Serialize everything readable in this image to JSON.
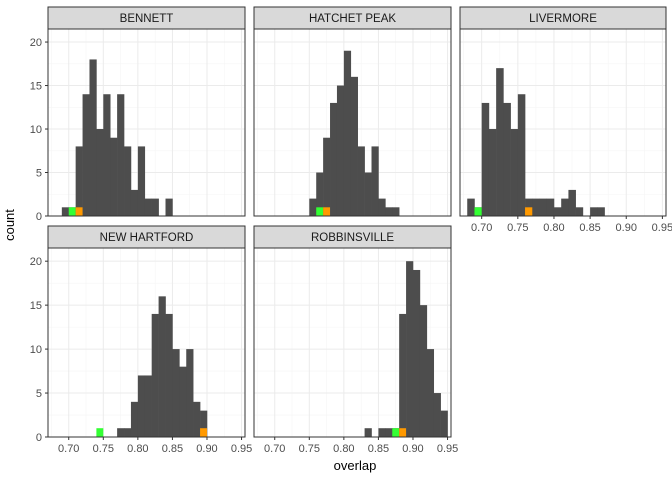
{
  "chart_data": {
    "type": "histogram",
    "xlabel": "overlap",
    "ylabel": "count",
    "xlim": [
      0.67,
      0.955
    ],
    "ylim": [
      0,
      21.5
    ],
    "xticks": [
      0.7,
      0.75,
      0.8,
      0.85,
      0.9,
      0.95
    ],
    "xtick_labels": [
      "0.70",
      "0.75",
      "0.80",
      "0.85",
      "0.90",
      "0.95"
    ],
    "yticks": [
      0,
      5,
      10,
      15,
      20
    ],
    "ytick_labels": [
      "0",
      "5",
      "10",
      "15",
      "20"
    ],
    "bin_width": 0.01,
    "grid": true,
    "colors": {
      "bar": "#4d4d4d",
      "highlight_green": "#33ff33",
      "highlight_orange": "#ff9900",
      "strip_bg": "#d9d9d9",
      "grid_major": "#ebebeb",
      "grid_minor": "#f5f5f5"
    },
    "panels": [
      {
        "name": "BENNETT",
        "bins": [
          {
            "x": 0.695,
            "count": 1
          },
          {
            "x": 0.705,
            "count": 1
          },
          {
            "x": 0.715,
            "count": 8
          },
          {
            "x": 0.725,
            "count": 14
          },
          {
            "x": 0.735,
            "count": 18
          },
          {
            "x": 0.745,
            "count": 10
          },
          {
            "x": 0.755,
            "count": 14
          },
          {
            "x": 0.765,
            "count": 9
          },
          {
            "x": 0.775,
            "count": 14
          },
          {
            "x": 0.785,
            "count": 8
          },
          {
            "x": 0.795,
            "count": 3
          },
          {
            "x": 0.805,
            "count": 8
          },
          {
            "x": 0.815,
            "count": 2
          },
          {
            "x": 0.825,
            "count": 2
          },
          {
            "x": 0.845,
            "count": 2
          }
        ],
        "highlights": [
          {
            "x": 0.705,
            "color": "green"
          },
          {
            "x": 0.715,
            "color": "orange"
          }
        ]
      },
      {
        "name": "HATCHET PEAK",
        "bins": [
          {
            "x": 0.755,
            "count": 2
          },
          {
            "x": 0.765,
            "count": 5
          },
          {
            "x": 0.775,
            "count": 9
          },
          {
            "x": 0.785,
            "count": 13
          },
          {
            "x": 0.795,
            "count": 15
          },
          {
            "x": 0.805,
            "count": 19
          },
          {
            "x": 0.815,
            "count": 16
          },
          {
            "x": 0.825,
            "count": 8
          },
          {
            "x": 0.835,
            "count": 5
          },
          {
            "x": 0.845,
            "count": 8
          },
          {
            "x": 0.855,
            "count": 2
          },
          {
            "x": 0.865,
            "count": 1
          },
          {
            "x": 0.875,
            "count": 1
          }
        ],
        "highlights": [
          {
            "x": 0.765,
            "color": "green"
          },
          {
            "x": 0.775,
            "color": "orange"
          }
        ]
      },
      {
        "name": "LIVERMORE",
        "bins": [
          {
            "x": 0.685,
            "count": 2
          },
          {
            "x": 0.695,
            "count": 1
          },
          {
            "x": 0.705,
            "count": 13
          },
          {
            "x": 0.715,
            "count": 10
          },
          {
            "x": 0.725,
            "count": 17
          },
          {
            "x": 0.735,
            "count": 13
          },
          {
            "x": 0.745,
            "count": 10
          },
          {
            "x": 0.755,
            "count": 14
          },
          {
            "x": 0.765,
            "count": 2
          },
          {
            "x": 0.775,
            "count": 2
          },
          {
            "x": 0.785,
            "count": 2
          },
          {
            "x": 0.795,
            "count": 2
          },
          {
            "x": 0.805,
            "count": 1
          },
          {
            "x": 0.815,
            "count": 2
          },
          {
            "x": 0.825,
            "count": 3
          },
          {
            "x": 0.835,
            "count": 1
          },
          {
            "x": 0.855,
            "count": 1
          },
          {
            "x": 0.865,
            "count": 1
          }
        ],
        "highlights": [
          {
            "x": 0.695,
            "color": "green"
          },
          {
            "x": 0.765,
            "color": "orange"
          }
        ]
      },
      {
        "name": "NEW HARTFORD",
        "bins": [
          {
            "x": 0.775,
            "count": 1
          },
          {
            "x": 0.785,
            "count": 1
          },
          {
            "x": 0.795,
            "count": 4
          },
          {
            "x": 0.805,
            "count": 7
          },
          {
            "x": 0.815,
            "count": 7
          },
          {
            "x": 0.825,
            "count": 14
          },
          {
            "x": 0.835,
            "count": 16
          },
          {
            "x": 0.845,
            "count": 14
          },
          {
            "x": 0.855,
            "count": 10
          },
          {
            "x": 0.865,
            "count": 8
          },
          {
            "x": 0.875,
            "count": 10
          },
          {
            "x": 0.885,
            "count": 4
          },
          {
            "x": 0.895,
            "count": 3
          }
        ],
        "highlights": [
          {
            "x": 0.745,
            "color": "green"
          },
          {
            "x": 0.895,
            "color": "orange"
          }
        ]
      },
      {
        "name": "ROBBINSVILLE",
        "bins": [
          {
            "x": 0.835,
            "count": 1
          },
          {
            "x": 0.855,
            "count": 1
          },
          {
            "x": 0.865,
            "count": 1
          },
          {
            "x": 0.875,
            "count": 1
          },
          {
            "x": 0.885,
            "count": 14
          },
          {
            "x": 0.895,
            "count": 20
          },
          {
            "x": 0.905,
            "count": 19
          },
          {
            "x": 0.915,
            "count": 15
          },
          {
            "x": 0.925,
            "count": 10
          },
          {
            "x": 0.935,
            "count": 5
          },
          {
            "x": 0.945,
            "count": 3
          }
        ],
        "highlights": [
          {
            "x": 0.875,
            "color": "green"
          },
          {
            "x": 0.885,
            "color": "orange"
          }
        ]
      }
    ]
  }
}
